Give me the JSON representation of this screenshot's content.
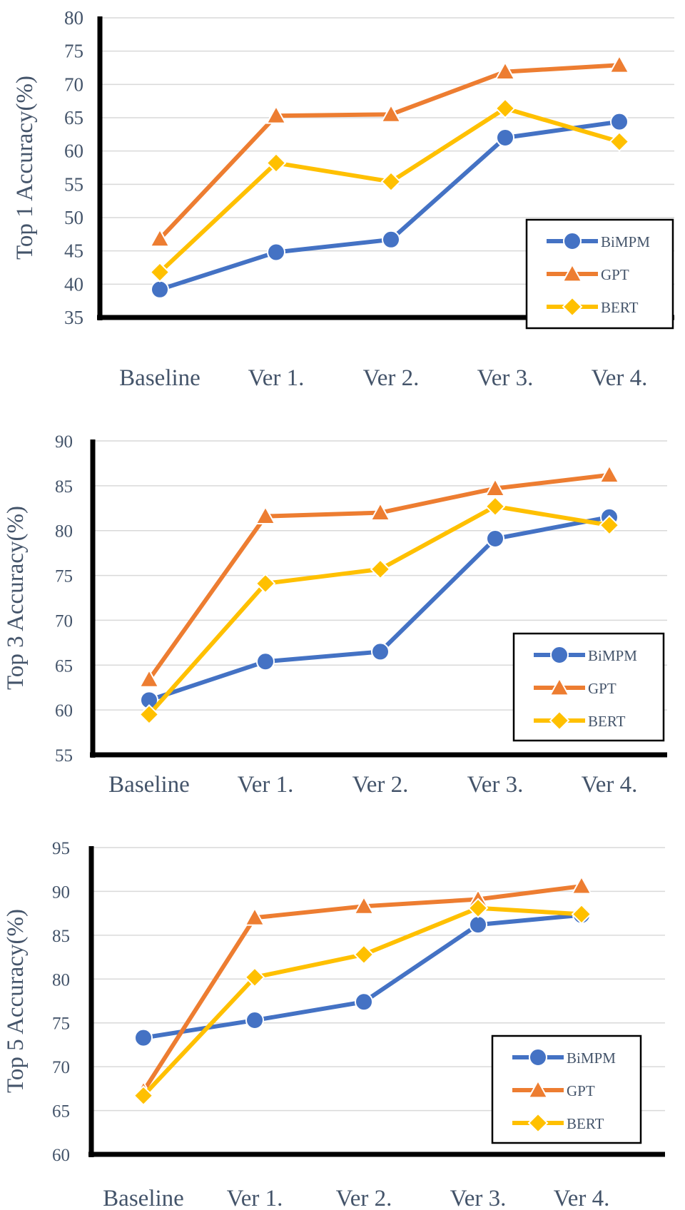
{
  "colors": {
    "BiMPM": "#4472c4",
    "GPT": "#ed7d31",
    "BERT": "#ffc000",
    "gridline": "#d9d9d9",
    "axis": "#000000",
    "text": "#44546a"
  },
  "chart_data": [
    {
      "type": "line",
      "ylabel": "Top 1 Accuracy(%)",
      "xlabel": "",
      "categories": [
        "Baseline",
        "Ver 1.",
        "Ver 2.",
        "Ver 3.",
        "Ver 4."
      ],
      "ylim": [
        35,
        80
      ],
      "yticks": [
        "35",
        "40",
        "45",
        "50",
        "55",
        "60",
        "65",
        "70",
        "75",
        "80"
      ],
      "grid": true,
      "legend_position": "bottom-right",
      "series": [
        {
          "name": "BiMPM",
          "marker": "circle",
          "values": [
            39.2,
            44.8,
            46.7,
            62.0,
            64.4
          ]
        },
        {
          "name": "GPT",
          "marker": "triangle",
          "values": [
            46.8,
            65.3,
            65.5,
            71.9,
            72.9
          ]
        },
        {
          "name": "BERT",
          "marker": "diamond",
          "values": [
            41.8,
            58.2,
            55.4,
            66.4,
            61.4
          ]
        }
      ]
    },
    {
      "type": "line",
      "ylabel": "Top 3 Accuracy(%)",
      "xlabel": "",
      "categories": [
        "Baseline",
        "Ver 1.",
        "Ver 2.",
        "Ver 3.",
        "Ver 4."
      ],
      "ylim": [
        55,
        90
      ],
      "yticks": [
        "55",
        "60",
        "65",
        "70",
        "75",
        "80",
        "85",
        "90"
      ],
      "grid": true,
      "legend_position": "bottom-right",
      "series": [
        {
          "name": "BiMPM",
          "marker": "circle",
          "values": [
            61.1,
            65.4,
            66.5,
            79.1,
            81.5
          ]
        },
        {
          "name": "GPT",
          "marker": "triangle",
          "values": [
            63.4,
            81.6,
            82.0,
            84.7,
            86.2
          ]
        },
        {
          "name": "BERT",
          "marker": "diamond",
          "values": [
            59.5,
            74.1,
            75.7,
            82.7,
            80.6
          ]
        }
      ]
    },
    {
      "type": "line",
      "ylabel": "Top 5 Accuracy(%)",
      "xlabel": "",
      "categories": [
        "Baseline",
        "Ver 1.",
        "Ver 2.",
        "Ver 3.",
        "Ver 4."
      ],
      "ylim": [
        60,
        95
      ],
      "yticks": [
        "60",
        "65",
        "70",
        "75",
        "80",
        "85",
        "90",
        "95"
      ],
      "grid": true,
      "legend_position": "bottom-right",
      "series": [
        {
          "name": "BiMPM",
          "marker": "circle",
          "values": [
            73.3,
            75.3,
            77.4,
            86.2,
            87.3
          ]
        },
        {
          "name": "GPT",
          "marker": "triangle",
          "values": [
            67.2,
            87.0,
            88.3,
            89.1,
            90.6
          ]
        },
        {
          "name": "BERT",
          "marker": "diamond",
          "values": [
            66.7,
            80.2,
            82.8,
            88.1,
            87.4
          ]
        }
      ]
    }
  ]
}
